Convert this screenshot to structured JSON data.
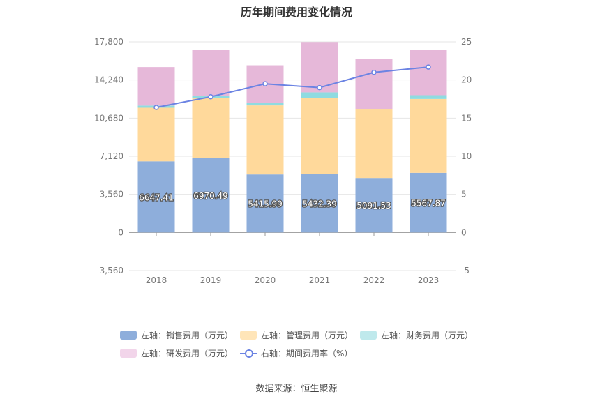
{
  "chart_data": {
    "type": "bar",
    "title": "历年期间费用变化情况",
    "categories": [
      "2018",
      "2019",
      "2020",
      "2021",
      "2022",
      "2023"
    ],
    "series": [
      {
        "name": "左轴：销售费用（万元）",
        "axis": "left",
        "color": "#8eaedb",
        "values": [
          6647.41,
          6970.49,
          5415.99,
          5432.39,
          5091.53,
          5567.87
        ]
      },
      {
        "name": "左轴：管理费用（万元）",
        "axis": "left",
        "color": "#ffd99b",
        "values": [
          5000,
          5600,
          6450,
          7150,
          6390,
          6900
        ]
      },
      {
        "name": "左轴：财务费用（万元）",
        "axis": "left",
        "color": "#8fdbe0",
        "values": [
          200,
          200,
          250,
          500,
          30,
          350
        ]
      },
      {
        "name": "左轴：研发费用（万元）",
        "axis": "left",
        "color": "#e6b8d9",
        "values": [
          3600,
          4300,
          3500,
          4700,
          4700,
          4200
        ]
      },
      {
        "name": "右轴：期间费用率（%）",
        "axis": "right",
        "type": "line",
        "color": "#6b83e3",
        "values": [
          16.4,
          17.8,
          19.5,
          19.0,
          21.0,
          21.7
        ]
      }
    ],
    "y_left": {
      "min": -3560,
      "max": 17800,
      "ticks": [
        "-3,560",
        "0",
        "3,560",
        "7,120",
        "10,680",
        "14,240",
        "17,800"
      ]
    },
    "y_right": {
      "min": -5,
      "max": 25,
      "ticks": [
        "-5",
        "0",
        "5",
        "10",
        "15",
        "20",
        "25"
      ]
    },
    "data_labels": [
      "6647.41",
      "6970.49",
      "5415.99",
      "5432.39",
      "5091.53",
      "5567.87"
    ],
    "grid": true,
    "legend_position": "bottom"
  },
  "legend": {
    "items": [
      {
        "label": "左轴：销售费用（万元）",
        "color": "#8eaedb"
      },
      {
        "label": "左轴：管理费用（万元）",
        "color": "#ffe5b8"
      },
      {
        "label": "左轴：财务费用（万元）",
        "color": "#bfe9ec"
      },
      {
        "label": "左轴：研发费用（万元）",
        "color": "#f2d5ea"
      },
      {
        "label": "右轴：期间费用率（%）",
        "color": "#6b83e3"
      }
    ]
  },
  "footer": {
    "source": "数据来源：恒生聚源"
  }
}
